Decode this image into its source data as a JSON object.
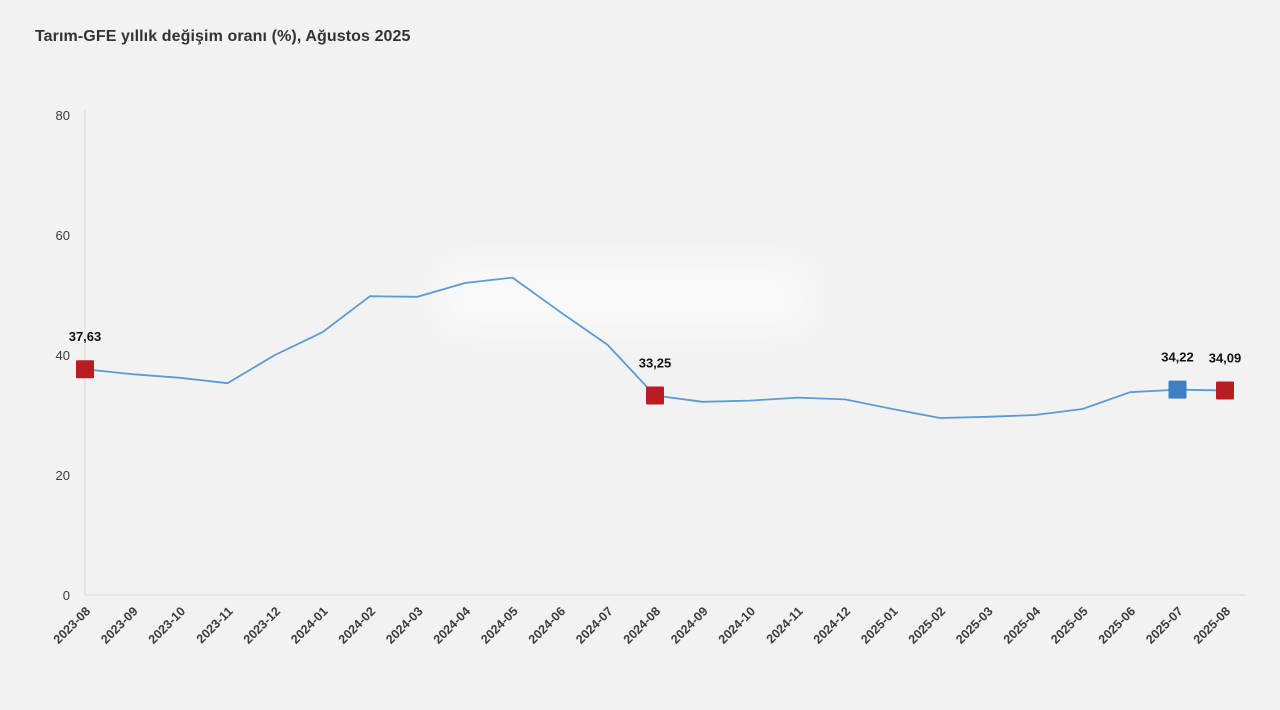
{
  "title": "Tarım-GFE yıllık değişim oranı (%), Ağustos 2025",
  "colors": {
    "line": "#5b9bd5",
    "marker_red": "#b91d22",
    "marker_blue": "#3f7fc1",
    "axis": "#d9d9d9",
    "background": "#f2f2f2"
  },
  "chart_data": {
    "type": "line",
    "title": "Tarım-GFE yıllık değişim oranı (%), Ağustos 2025",
    "xlabel": "",
    "ylabel": "",
    "ylim": [
      0,
      80
    ],
    "yticks": [
      0,
      20,
      40,
      60,
      80
    ],
    "grid": false,
    "legend": false,
    "x": [
      "2023-08",
      "2023-09",
      "2023-10",
      "2023-11",
      "2023-12",
      "2024-01",
      "2024-02",
      "2024-03",
      "2024-04",
      "2024-05",
      "2024-06",
      "2024-07",
      "2024-08",
      "2024-09",
      "2024-10",
      "2024-11",
      "2024-12",
      "2025-01",
      "2025-02",
      "2025-03",
      "2025-04",
      "2025-05",
      "2025-06",
      "2025-07",
      "2025-08"
    ],
    "values": [
      37.63,
      36.8,
      36.2,
      35.3,
      40.0,
      43.8,
      49.8,
      49.7,
      52.0,
      52.9,
      47.2,
      41.7,
      33.25,
      32.2,
      32.4,
      32.9,
      32.6,
      31.0,
      29.5,
      29.7,
      30.0,
      31.0,
      33.8,
      34.22,
      34.09
    ],
    "annotations": [
      {
        "x": "2023-08",
        "value": 37.63,
        "label": "37,63",
        "marker": "square",
        "color": "#b91d22"
      },
      {
        "x": "2024-08",
        "value": 33.25,
        "label": "33,25",
        "marker": "square",
        "color": "#b91d22"
      },
      {
        "x": "2025-07",
        "value": 34.22,
        "label": "34,22",
        "marker": "square",
        "color": "#3f7fc1"
      },
      {
        "x": "2025-08",
        "value": 34.09,
        "label": "34,09",
        "marker": "square",
        "color": "#b91d22"
      }
    ]
  }
}
